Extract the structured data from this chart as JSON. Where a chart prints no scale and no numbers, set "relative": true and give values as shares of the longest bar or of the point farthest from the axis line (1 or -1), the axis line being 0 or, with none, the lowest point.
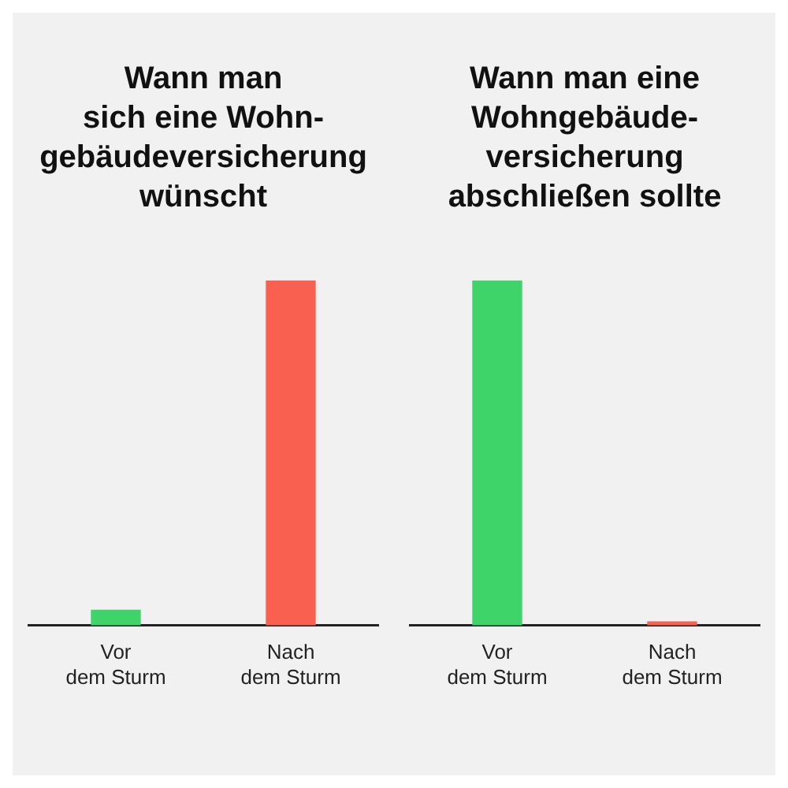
{
  "chart_data": [
    {
      "type": "bar",
      "title": "Wann man\nsich eine Wohn-\ngebäudeversicherung\nwünscht",
      "categories": [
        "Vor\ndem Sturm",
        "Nach\ndem Sturm"
      ],
      "values": [
        0.044,
        1
      ],
      "colors": [
        "#3fd46a",
        "#fa6050"
      ],
      "relative": true,
      "grid": false,
      "legend": false
    },
    {
      "type": "bar",
      "title": "Wann man eine\nWohngebäude-\nversicherung\nabschließen sollte",
      "categories": [
        "Vor\ndem Sturm",
        "Nach\ndem Sturm"
      ],
      "values": [
        1,
        0.01
      ],
      "colors": [
        "#3fd46a",
        "#fa6050"
      ],
      "relative": true,
      "grid": false,
      "legend": false
    }
  ]
}
